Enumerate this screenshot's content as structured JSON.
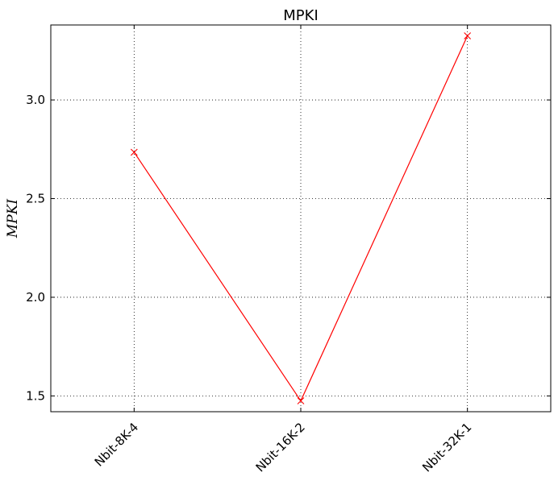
{
  "chart_data": {
    "type": "line",
    "title": "MPKI",
    "xlabel": "",
    "ylabel": "MPKI",
    "categories": [
      "Nbit-8K-4",
      "Nbit-16K-2",
      "Nbit-32K-1"
    ],
    "series": [
      {
        "values": [
          2.735,
          1.475,
          3.325
        ],
        "color": "#ff0000",
        "marker": "x"
      }
    ],
    "ylim": [
      1.42,
      3.38
    ],
    "yticks": [
      {
        "value": 1.5,
        "label": "1.5"
      },
      {
        "value": 2.0,
        "label": "2.0"
      },
      {
        "value": 2.5,
        "label": "2.5"
      },
      {
        "value": 3.0,
        "label": "3.0"
      }
    ],
    "grid": true,
    "grid_style": "dotted",
    "legend": "none"
  }
}
